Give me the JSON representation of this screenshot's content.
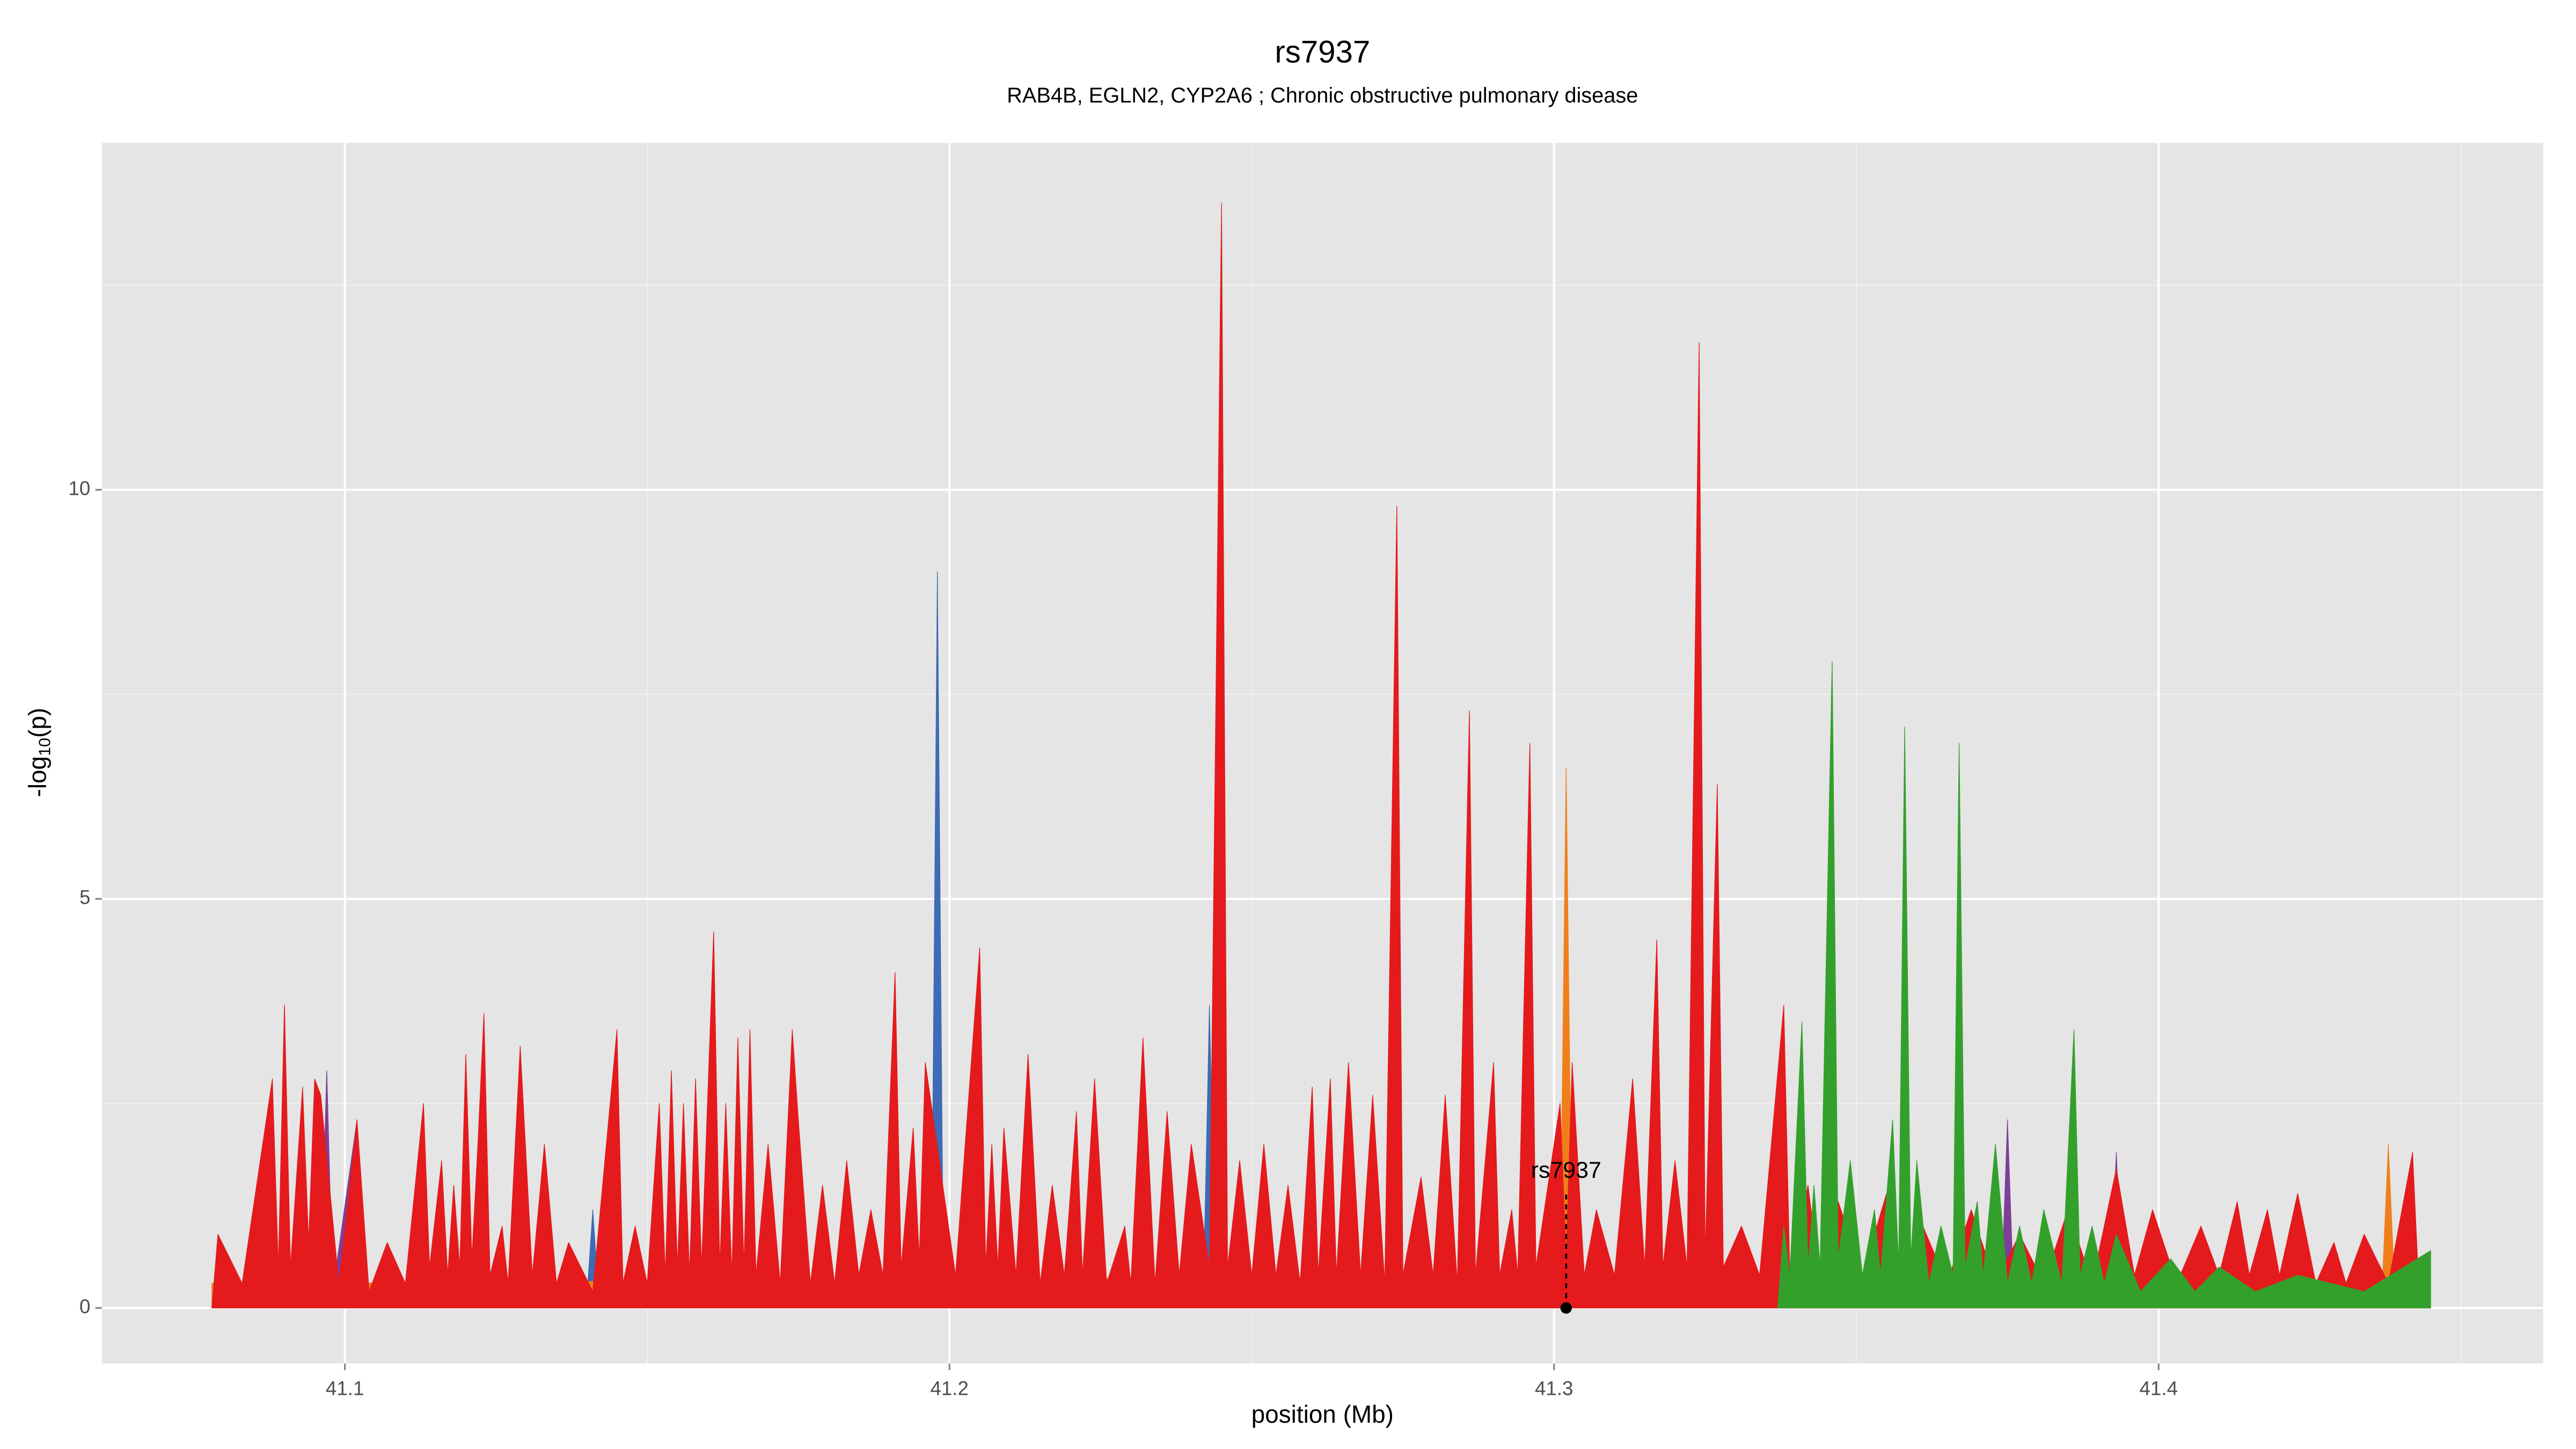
{
  "chart_data": {
    "type": "area",
    "title": "rs7937",
    "subtitle": "RAB4B, EGLN2, CYP2A6 ; Chronic obstructive pulmonary disease",
    "x_label": "position (Mb)",
    "y_label": {
      "prefix": "-log",
      "sub": "10",
      "suffix": "(p)"
    },
    "xlim": [
      41.0598,
      41.4636
    ],
    "ylim": [
      -0.68,
      14.24
    ],
    "xticks": [
      41.1,
      41.2,
      41.3,
      41.4
    ],
    "yticks": [
      0,
      5,
      10
    ],
    "minor_xticks": [
      41.05,
      41.15,
      41.25,
      41.35,
      41.45
    ],
    "minor_yticks": [
      2.5,
      7.5,
      12.5
    ],
    "grid": true,
    "background": "#e5e5e5",
    "annotation": {
      "label": "rs7937",
      "x": 41.302,
      "y": 0
    },
    "series": [
      {
        "color": "#3d6bb5",
        "x": [
          41.078,
          41.096,
          41.097,
          41.098,
          41.14,
          41.141,
          41.142,
          41.197,
          41.198,
          41.199,
          41.242,
          41.243,
          41.244,
          41.445
        ],
        "values": [
          0,
          0.2,
          2.9,
          0.1,
          0.1,
          1.2,
          0.1,
          0.2,
          9.0,
          0.2,
          0.2,
          3.7,
          0.2,
          0
        ]
      },
      {
        "color": "#7e3f98",
        "x": [
          41.078,
          41.096,
          41.097,
          41.098,
          41.102,
          41.103,
          41.374,
          41.375,
          41.376,
          41.392,
          41.393,
          41.394,
          41.441,
          41.442,
          41.443,
          41.445
        ],
        "values": [
          0,
          0.2,
          2.9,
          0.2,
          2.3,
          0.1,
          0.2,
          2.3,
          0.2,
          0.2,
          1.9,
          0.2,
          0.2,
          1.8,
          0.1,
          0
        ]
      },
      {
        "color": "#f07f1a",
        "x": [
          41.078,
          41.089,
          41.09,
          41.091,
          41.301,
          41.302,
          41.303,
          41.366,
          41.367,
          41.368,
          41.437,
          41.438,
          41.439,
          41.445
        ],
        "values": [
          0.3,
          0.3,
          3.7,
          0.3,
          0.4,
          6.6,
          0.4,
          0.3,
          4.0,
          0.3,
          0.3,
          2.0,
          0.3,
          0
        ]
      },
      {
        "color": "#e41a1c",
        "x": [
          41.078,
          41.079,
          41.083,
          41.088,
          41.089,
          41.09,
          41.091,
          41.093,
          41.094,
          41.095,
          41.096,
          41.099,
          41.102,
          41.104,
          41.107,
          41.11,
          41.113,
          41.114,
          41.116,
          41.117,
          41.118,
          41.119,
          41.12,
          41.121,
          41.122,
          41.123,
          41.124,
          41.126,
          41.127,
          41.129,
          41.131,
          41.133,
          41.135,
          41.137,
          41.141,
          41.145,
          41.146,
          41.148,
          41.15,
          41.152,
          41.153,
          41.154,
          41.155,
          41.156,
          41.157,
          41.158,
          41.159,
          41.161,
          41.162,
          41.163,
          41.164,
          41.165,
          41.166,
          41.167,
          41.168,
          41.17,
          41.172,
          41.174,
          41.175,
          41.177,
          41.179,
          41.181,
          41.183,
          41.185,
          41.187,
          41.189,
          41.191,
          41.192,
          41.194,
          41.195,
          41.196,
          41.201,
          41.205,
          41.206,
          41.207,
          41.208,
          41.209,
          41.211,
          41.213,
          41.215,
          41.217,
          41.219,
          41.221,
          41.222,
          41.224,
          41.226,
          41.229,
          41.23,
          41.232,
          41.234,
          41.236,
          41.238,
          41.24,
          41.243,
          41.245,
          41.246,
          41.248,
          41.25,
          41.252,
          41.254,
          41.256,
          41.258,
          41.26,
          41.261,
          41.263,
          41.264,
          41.266,
          41.268,
          41.27,
          41.272,
          41.274,
          41.275,
          41.278,
          41.28,
          41.282,
          41.284,
          41.286,
          41.287,
          41.29,
          41.291,
          41.293,
          41.294,
          41.296,
          41.297,
          41.301,
          41.302,
          41.303,
          41.305,
          41.307,
          41.31,
          41.313,
          41.315,
          41.317,
          41.318,
          41.32,
          41.322,
          41.324,
          41.325,
          41.327,
          41.328,
          41.331,
          41.334,
          41.338,
          41.339,
          41.342,
          41.344,
          41.347,
          41.351,
          41.355,
          41.358,
          41.361,
          41.365,
          41.369,
          41.373,
          41.377,
          41.381,
          41.385,
          41.389,
          41.393,
          41.396,
          41.399,
          41.403,
          41.407,
          41.41,
          41.413,
          41.415,
          41.418,
          41.42,
          41.423,
          41.426,
          41.429,
          41.431,
          41.434,
          41.438,
          41.442,
          41.443,
          41.445
        ],
        "values": [
          0,
          0.9,
          0.3,
          2.8,
          0.5,
          3.7,
          0.5,
          2.7,
          0.8,
          2.8,
          2.6,
          0.3,
          2.3,
          0.2,
          0.8,
          0.3,
          2.5,
          0.5,
          1.8,
          0.4,
          1.5,
          0.5,
          3.1,
          0.6,
          2.0,
          3.6,
          0.4,
          1.0,
          0.3,
          3.2,
          0.4,
          2.0,
          0.3,
          0.8,
          0.2,
          3.4,
          0.3,
          1.0,
          0.3,
          2.5,
          0.4,
          2.9,
          0.5,
          2.5,
          0.4,
          2.8,
          0.5,
          4.6,
          0.5,
          2.5,
          0.4,
          3.3,
          0.5,
          3.4,
          0.4,
          2.0,
          0.3,
          3.4,
          2.3,
          0.3,
          1.5,
          0.3,
          1.8,
          0.4,
          1.2,
          0.4,
          4.1,
          0.5,
          2.2,
          0.6,
          3.0,
          0.4,
          4.4,
          0.5,
          2.0,
          0.5,
          2.2,
          0.4,
          3.1,
          0.3,
          1.5,
          0.4,
          2.4,
          0.4,
          2.8,
          0.3,
          1.0,
          0.3,
          3.3,
          0.3,
          2.4,
          0.4,
          2.0,
          0.5,
          13.5,
          0.5,
          1.8,
          0.4,
          2.0,
          0.4,
          1.5,
          0.3,
          2.7,
          0.4,
          2.8,
          0.4,
          3.0,
          0.4,
          2.6,
          0.3,
          9.8,
          0.4,
          1.6,
          0.4,
          2.6,
          0.3,
          7.3,
          0.4,
          3.0,
          0.4,
          1.2,
          0.4,
          6.9,
          0.5,
          2.5,
          0.6,
          3.0,
          0.4,
          1.2,
          0.4,
          2.8,
          0.5,
          4.5,
          0.5,
          1.8,
          0.5,
          11.8,
          0.6,
          6.4,
          0.5,
          1.0,
          0.4,
          3.7,
          0.4,
          1.5,
          0.3,
          1.3,
          0.4,
          1.4,
          0.3,
          1.0,
          0.3,
          1.2,
          0.3,
          0.9,
          0.3,
          1.2,
          0.3,
          1.7,
          0.4,
          1.2,
          0.3,
          1.0,
          0.4,
          1.3,
          0.4,
          1.2,
          0.4,
          1.4,
          0.3,
          0.8,
          0.3,
          0.9,
          0.3,
          1.9,
          0.3,
          0
        ]
      },
      {
        "color": "#33a02c",
        "x": [
          41.337,
          41.338,
          41.339,
          41.341,
          41.342,
          41.343,
          41.344,
          41.346,
          41.347,
          41.349,
          41.351,
          41.353,
          41.354,
          41.356,
          41.357,
          41.358,
          41.359,
          41.36,
          41.362,
          41.364,
          41.366,
          41.367,
          41.368,
          41.37,
          41.371,
          41.373,
          41.375,
          41.377,
          41.379,
          41.381,
          41.384,
          41.386,
          41.387,
          41.389,
          41.391,
          41.393,
          41.397,
          41.402,
          41.406,
          41.41,
          41.416,
          41.423,
          41.434,
          41.445
        ],
        "values": [
          0,
          1.0,
          0.4,
          3.5,
          0.5,
          1.5,
          0.5,
          7.9,
          0.6,
          1.8,
          0.4,
          1.2,
          0.4,
          2.3,
          0.5,
          7.1,
          0.6,
          1.8,
          0.3,
          1.0,
          0.4,
          6.9,
          0.5,
          1.3,
          0.4,
          2.0,
          0.3,
          1.0,
          0.3,
          1.2,
          0.3,
          3.4,
          0.4,
          1.0,
          0.3,
          0.9,
          0.2,
          0.6,
          0.2,
          0.5,
          0.2,
          0.4,
          0.2,
          0.7
        ]
      }
    ]
  }
}
